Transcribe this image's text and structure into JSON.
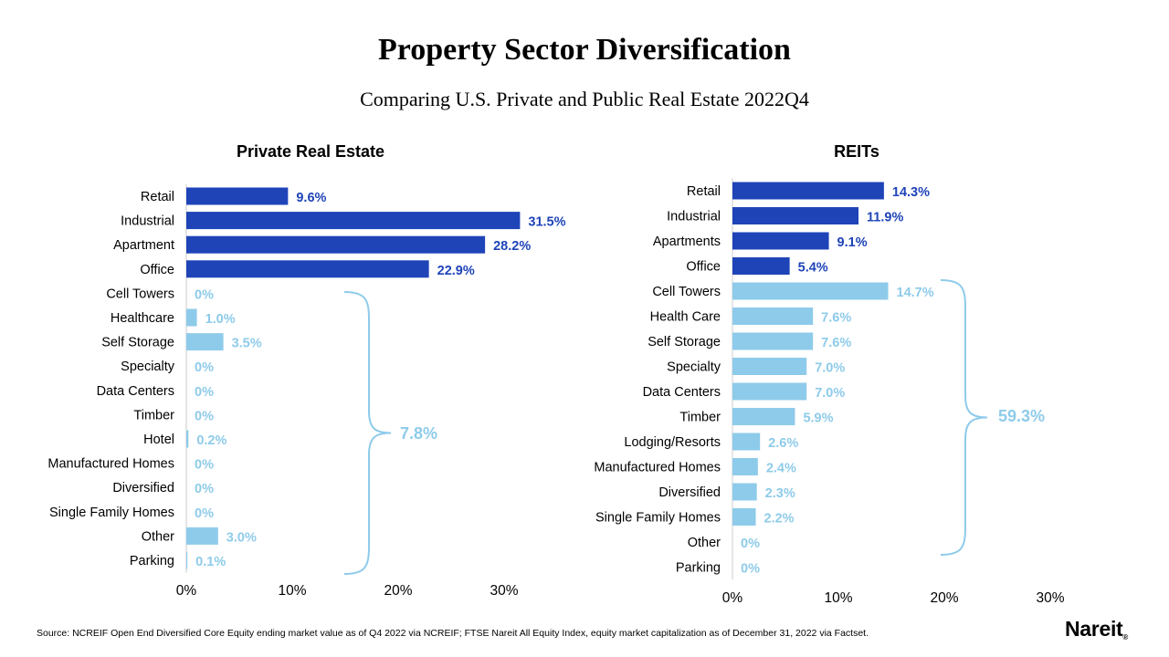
{
  "title": "Property Sector Diversification",
  "subtitle": "Comparing U.S. Private and Public Real Estate 2022Q4",
  "source": "Source: NCREIF Open End Diversified Core Equity ending market value as of Q4 2022 via NCREIF; FTSE Nareit All Equity Index, equity market capitalization as of December 31, 2022 via Factset.",
  "logo": "Nareit",
  "logo_mark": "®",
  "colors": {
    "dark_bar": "#1f44b8",
    "light_bar": "#8ecbea",
    "bracket": "#8ecbea",
    "axis": "#cccccc"
  },
  "chart_data": [
    {
      "type": "bar",
      "orientation": "horizontal",
      "title": "Private Real Estate",
      "categories": [
        "Retail",
        "Industrial",
        "Apartment",
        "Office",
        "Cell Towers",
        "Healthcare",
        "Self Storage",
        "Specialty",
        "Data Centers",
        "Timber",
        "Hotel",
        "Manufactured Homes",
        "Diversified",
        "Single Family Homes",
        "Other",
        "Parking"
      ],
      "values": [
        9.6,
        31.5,
        28.2,
        22.9,
        0,
        1.0,
        3.5,
        0,
        0,
        0,
        0.2,
        0,
        0,
        0,
        3.0,
        0.1
      ],
      "labels": [
        "9.6%",
        "31.5%",
        "28.2%",
        "22.9%",
        "0%",
        "1.0%",
        "3.5%",
        "0%",
        "0%",
        "0%",
        "0.2%",
        "0%",
        "0%",
        "0%",
        "3.0%",
        "0.1%"
      ],
      "highlight_count": 4,
      "group_label": "7.8%",
      "xlim": [
        0,
        30
      ],
      "xticks": [
        "0%",
        "10%",
        "20%",
        "30%"
      ]
    },
    {
      "type": "bar",
      "orientation": "horizontal",
      "title": "REITs",
      "categories": [
        "Retail",
        "Industrial",
        "Apartments",
        "Office",
        "Cell Towers",
        "Health Care",
        "Self Storage",
        "Specialty",
        "Data Centers",
        "Timber",
        "Lodging/Resorts",
        "Manufactured Homes",
        "Diversified",
        "Single Family Homes",
        "Other",
        "Parking"
      ],
      "values": [
        14.3,
        11.9,
        9.1,
        5.4,
        14.7,
        7.6,
        7.6,
        7.0,
        7.0,
        5.9,
        2.6,
        2.4,
        2.3,
        2.2,
        0,
        0
      ],
      "labels": [
        "14.3%",
        "11.9%",
        "9.1%",
        "5.4%",
        "14.7%",
        "7.6%",
        "7.6%",
        "7.0%",
        "7.0%",
        "5.9%",
        "2.6%",
        "2.4%",
        "2.3%",
        "2.2%",
        "0%",
        "0%"
      ],
      "highlight_count": 4,
      "group_label": "59.3%",
      "xlim": [
        0,
        30
      ],
      "xticks": [
        "0%",
        "10%",
        "20%",
        "30%"
      ]
    }
  ]
}
